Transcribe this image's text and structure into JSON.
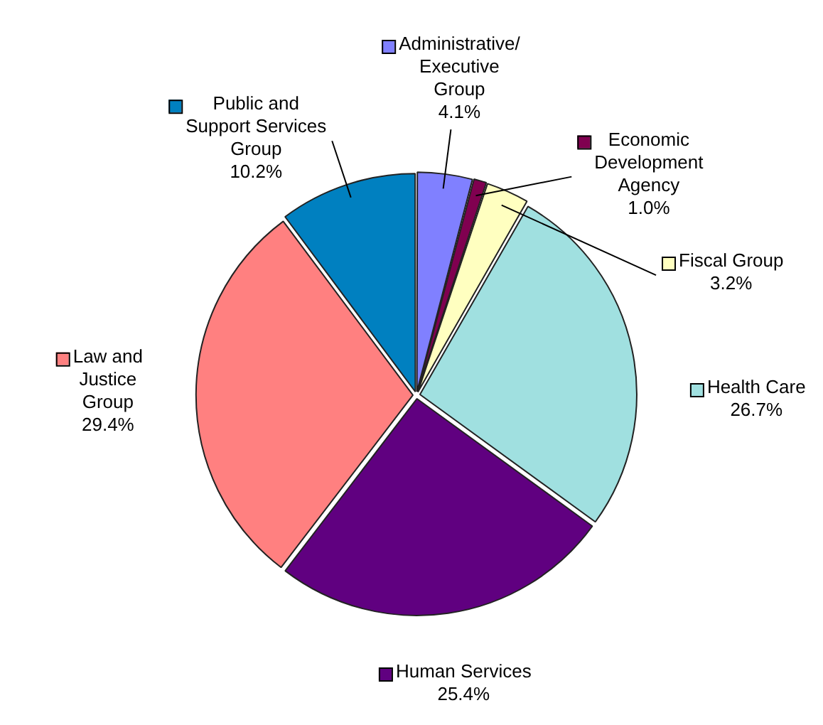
{
  "chart_data": {
    "type": "pie",
    "categories": [
      "Administrative/\nExecutive\nGroup",
      "Economic\nDevelopment\nAgency",
      "Fiscal Group",
      "Health Care",
      "Human Services",
      "Law and\nJustice\nGroup",
      "Public and\nSupport Services\nGroup"
    ],
    "values": [
      4.1,
      1.0,
      3.2,
      26.7,
      25.4,
      29.4,
      10.2
    ],
    "value_labels": [
      "4.1%",
      "1.0%",
      "3.2%",
      "26.7%",
      "25.4%",
      "29.4%",
      "10.2%"
    ],
    "colors": [
      "#8080ff",
      "#800050",
      "#ffffc0",
      "#a0e0e0",
      "#600080",
      "#ff8080",
      "#0080c0"
    ],
    "legend": "top right"
  }
}
